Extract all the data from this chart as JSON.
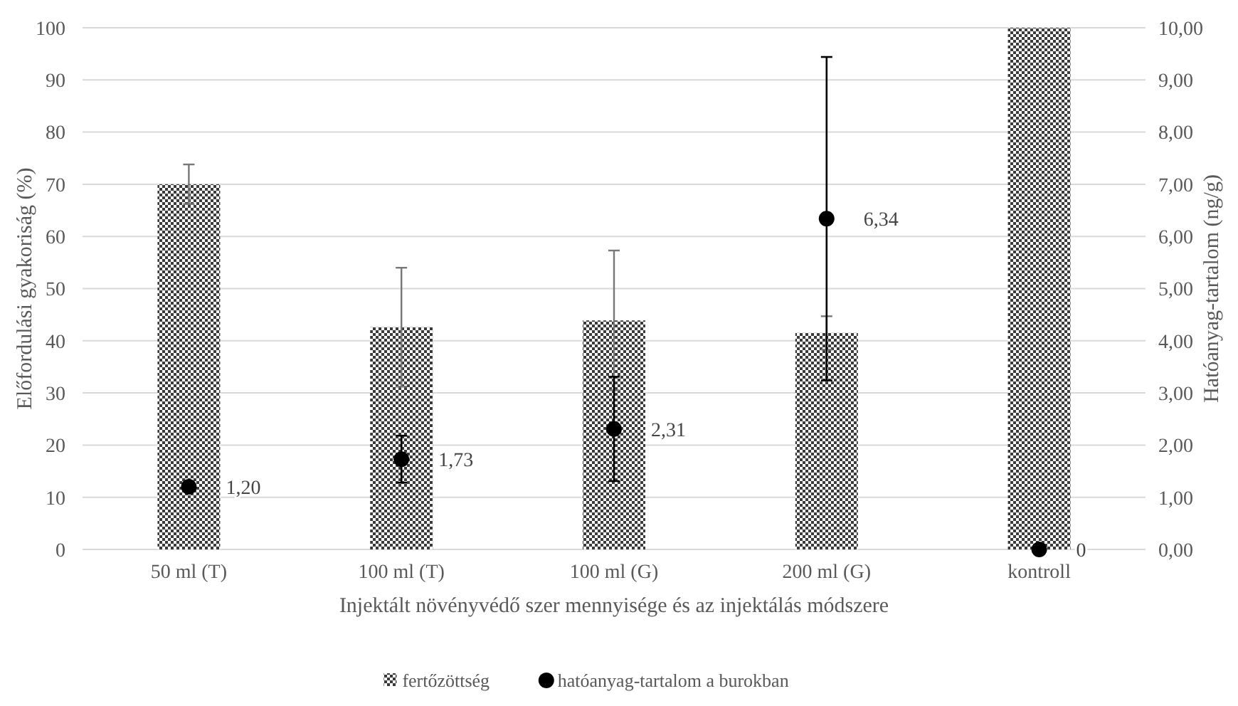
{
  "chart_data": {
    "type": "bar",
    "xlabel": "Injektált növényvédő szer mennyisége és az injektálás módszere",
    "ylabel": "Előfordulási gyakoriság (%)",
    "y2label": "Hatóanyag-tartalom (ng/g)",
    "categories": [
      "50 ml (T)",
      "100 ml (T)",
      "100 ml (G)",
      "200 ml (G)",
      "kontroll"
    ],
    "series": [
      {
        "name": "fertőzöttség",
        "type": "bar",
        "color": "#3a3a3a",
        "values": [
          70,
          42.6,
          43.9,
          41.5,
          100
        ],
        "errors": [
          3.8,
          11.4,
          13.4,
          3.2,
          null
        ]
      },
      {
        "name": "hatóanyag-tartalom a burokban",
        "type": "scatter",
        "axis": "y2",
        "color": "#000000",
        "marker": "circle",
        "values": [
          1.2,
          1.73,
          2.31,
          6.34,
          0
        ],
        "errors": [
          null,
          0.45,
          1.0,
          3.1,
          null
        ],
        "value_labels": [
          "1,20",
          "1,73",
          "2,31",
          "6,34",
          "0"
        ]
      }
    ],
    "ylim": [
      0,
      100
    ],
    "yticks": [
      0,
      10,
      20,
      30,
      40,
      50,
      60,
      70,
      80,
      90,
      100
    ],
    "y2lim": [
      0,
      10
    ],
    "y2ticks": [
      {
        "value": 0,
        "label": "0,00"
      },
      {
        "value": 1,
        "label": "1,00"
      },
      {
        "value": 2,
        "label": "2,00"
      },
      {
        "value": 3,
        "label": "3,00"
      },
      {
        "value": 4,
        "label": "4,00"
      },
      {
        "value": 5,
        "label": "5,00"
      },
      {
        "value": 6,
        "label": "6,00"
      },
      {
        "value": 7,
        "label": "7,00"
      },
      {
        "value": 8,
        "label": "8,00"
      },
      {
        "value": 9,
        "label": "9,00"
      },
      {
        "value": 10,
        "label": "10,00"
      }
    ],
    "grid": "y",
    "legend": "bottom"
  }
}
